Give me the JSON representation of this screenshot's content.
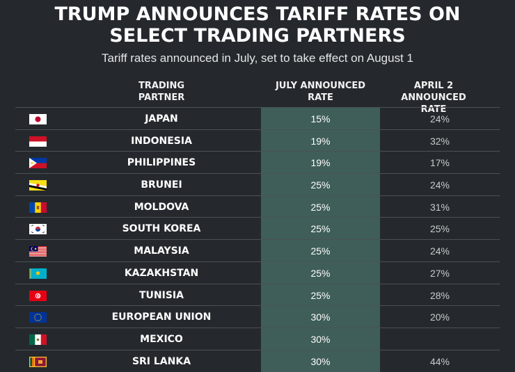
{
  "title_line1": "TRUMP ANNOUNCES TARIFF RATES ON",
  "title_line2": "SELECT TRADING PARTNERS",
  "subtitle": "Tariff rates announced in July, set to take effect on August 1",
  "headers": {
    "partner_line1": "TRADING",
    "partner_line2": "PARTNER",
    "july_line1": "JULY ANNOUNCED",
    "july_line2": "RATE",
    "april_line1": "APRIL 2 ANNOUNCED",
    "april_line2": "RATE"
  },
  "colors": {
    "background": "#25292d",
    "highlight_column": "#3f5e59",
    "divider": "#4a5157"
  },
  "chart_data": {
    "type": "table",
    "columns": [
      "TRADING PARTNER",
      "JULY ANNOUNCED RATE",
      "APRIL 2 ANNOUNCED RATE"
    ],
    "rows": [
      {
        "flag": "japan-flag-icon",
        "country": "JAPAN",
        "july": "15%",
        "april": "24%"
      },
      {
        "flag": "indonesia-flag-icon",
        "country": "INDONESIA",
        "july": "19%",
        "april": "32%"
      },
      {
        "flag": "philippines-flag-icon",
        "country": "PHILIPPINES",
        "july": "19%",
        "april": "17%"
      },
      {
        "flag": "brunei-flag-icon",
        "country": "BRUNEI",
        "july": "25%",
        "april": "24%"
      },
      {
        "flag": "moldova-flag-icon",
        "country": "MOLDOVA",
        "july": "25%",
        "april": "31%"
      },
      {
        "flag": "south-korea-flag-icon",
        "country": "SOUTH KOREA",
        "july": "25%",
        "april": "25%"
      },
      {
        "flag": "malaysia-flag-icon",
        "country": "MALAYSIA",
        "july": "25%",
        "april": "24%"
      },
      {
        "flag": "kazakhstan-flag-icon",
        "country": "KAZAKHSTAN",
        "july": "25%",
        "april": "27%"
      },
      {
        "flag": "tunisia-flag-icon",
        "country": "TUNISIA",
        "july": "25%",
        "april": "28%"
      },
      {
        "flag": "european-union-flag-icon",
        "country": "EUROPEAN UNION",
        "july": "30%",
        "april": "20%"
      },
      {
        "flag": "mexico-flag-icon",
        "country": "MEXICO",
        "july": "30%",
        "april": ""
      },
      {
        "flag": "sri-lanka-flag-icon",
        "country": "SRI LANKA",
        "july": "30%",
        "april": "44%"
      }
    ]
  }
}
